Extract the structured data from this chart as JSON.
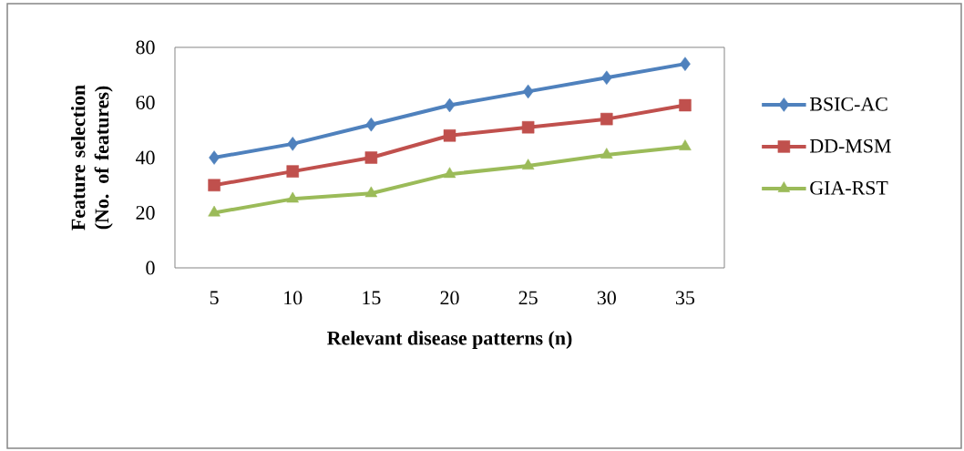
{
  "chart_data": {
    "type": "line",
    "xlabel": "Relevant disease patterns (n)",
    "ylabel": "Feature selection (No. of features)",
    "categories": [
      "5",
      "10",
      "15",
      "20",
      "25",
      "30",
      "35"
    ],
    "series": [
      {
        "name": "BSIC-AC",
        "color": "#4f81bd",
        "marker": "diamond",
        "values": [
          40,
          45,
          52,
          59,
          64,
          69,
          74
        ]
      },
      {
        "name": "DD-MSM",
        "color": "#c0504d",
        "marker": "square",
        "values": [
          30,
          35,
          40,
          48,
          51,
          54,
          59
        ]
      },
      {
        "name": "GIA-RST",
        "color": "#9bbb59",
        "marker": "triangle",
        "values": [
          20,
          25,
          27,
          34,
          37,
          41,
          44
        ]
      }
    ],
    "ylim": [
      0,
      80
    ],
    "yticks": [
      0,
      20,
      40,
      60,
      80
    ],
    "grid": false,
    "legend": "right",
    "line_style": "solid"
  }
}
